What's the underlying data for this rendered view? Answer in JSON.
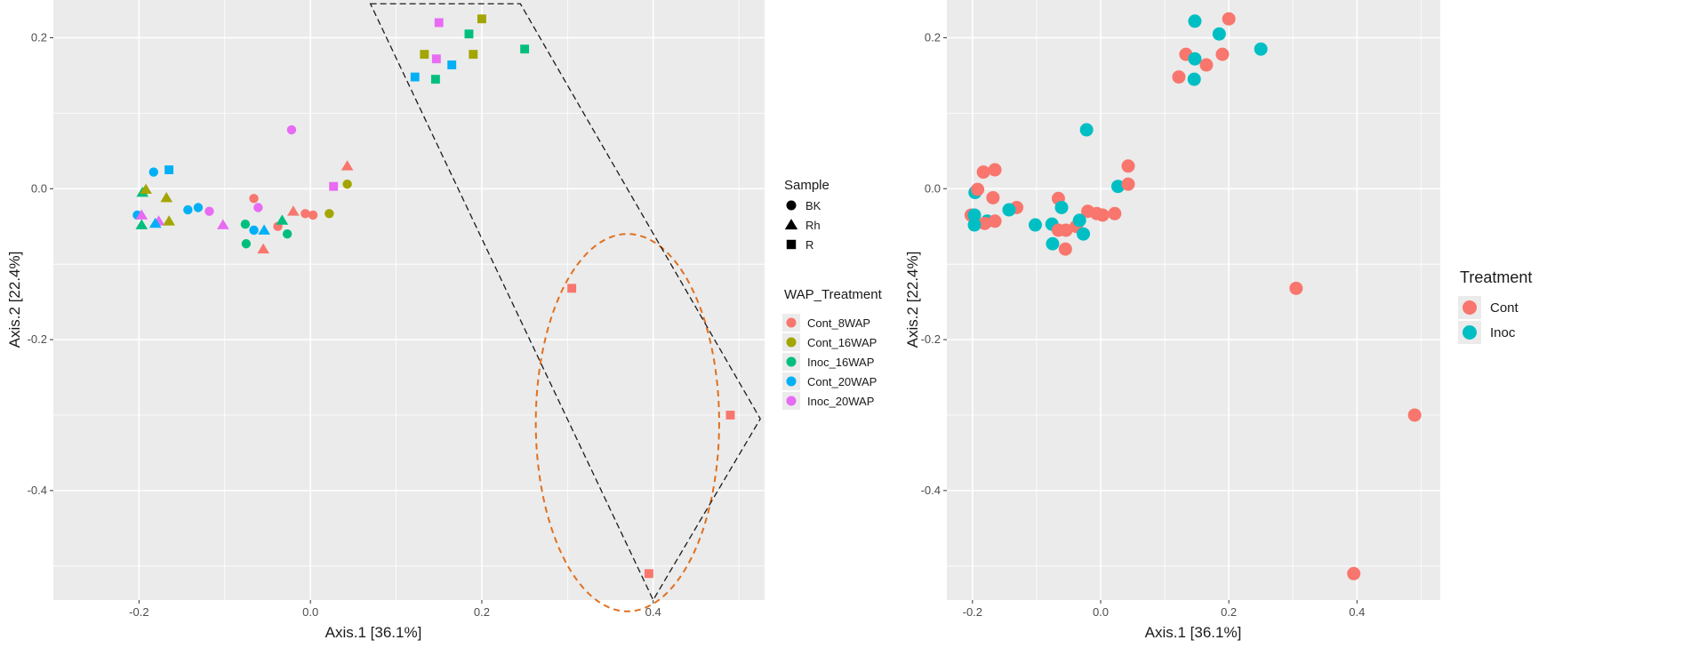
{
  "colors": {
    "Cont_8WAP": "#F8766D",
    "Cont_16WAP": "#A3A500",
    "Inoc_16WAP": "#00BF7D",
    "Cont_20WAP": "#00B0F6",
    "Inoc_20WAP": "#E76BF3",
    "Cont": "#F8766D",
    "Inoc": "#00BFC4",
    "panel_bg": "#EBEBEB",
    "grid": "#FFFFFF",
    "ellipse": "#E07020",
    "polygon": "#1A1A1A"
  },
  "chart_data": [
    {
      "type": "scatter",
      "title": "",
      "xlabel": "Axis.1   [36.1%]",
      "ylabel": "Axis.2   [22.4%]",
      "xlim": [
        -0.3,
        0.53
      ],
      "ylim": [
        -0.545,
        0.25
      ],
      "xticks": [
        -0.2,
        0.0,
        0.2,
        0.4
      ],
      "xtick_labels": [
        "-0.2",
        "0.0",
        "0.2",
        "0.4"
      ],
      "yticks": [
        0.2,
        0.0,
        -0.2,
        -0.4
      ],
      "ytick_labels": [
        "0.2",
        "0.0",
        "-0.2",
        "-0.4"
      ],
      "legend_sample": {
        "title": "Sample",
        "items": [
          {
            "label": "BK",
            "shape": "circle"
          },
          {
            "label": "Rh",
            "shape": "triangle"
          },
          {
            "label": "R",
            "shape": "square"
          }
        ]
      },
      "legend_group": {
        "title": "WAP_Treatment",
        "items": [
          "Cont_8WAP",
          "Cont_16WAP",
          "Inoc_16WAP",
          "Cont_20WAP",
          "Inoc_20WAP"
        ]
      },
      "annotations": [
        {
          "type": "ellipse",
          "cx": 0.37,
          "cy": -0.31,
          "rx": 0.107,
          "ry": 0.25
        },
        {
          "type": "polygon",
          "points": [
            [
              0.07,
              0.245
            ],
            [
              0.245,
              0.245
            ],
            [
              0.525,
              -0.305
            ],
            [
              0.4,
              -0.545
            ]
          ]
        }
      ],
      "points": [
        {
          "x": 0.15,
          "y": 0.22,
          "group": "Inoc_20WAP",
          "shape": "square"
        },
        {
          "x": 0.2,
          "y": 0.225,
          "group": "Cont_16WAP",
          "shape": "square"
        },
        {
          "x": 0.185,
          "y": 0.205,
          "group": "Inoc_16WAP",
          "shape": "square"
        },
        {
          "x": 0.25,
          "y": 0.185,
          "group": "Inoc_16WAP",
          "shape": "square"
        },
        {
          "x": 0.133,
          "y": 0.178,
          "group": "Cont_16WAP",
          "shape": "square"
        },
        {
          "x": 0.19,
          "y": 0.178,
          "group": "Cont_16WAP",
          "shape": "square"
        },
        {
          "x": 0.147,
          "y": 0.172,
          "group": "Inoc_20WAP",
          "shape": "square"
        },
        {
          "x": 0.165,
          "y": 0.164,
          "group": "Cont_20WAP",
          "shape": "square"
        },
        {
          "x": 0.122,
          "y": 0.148,
          "group": "Cont_20WAP",
          "shape": "square"
        },
        {
          "x": 0.146,
          "y": 0.145,
          "group": "Inoc_16WAP",
          "shape": "square"
        },
        {
          "x": -0.022,
          "y": 0.078,
          "group": "Inoc_20WAP",
          "shape": "circle"
        },
        {
          "x": -0.165,
          "y": 0.025,
          "group": "Cont_20WAP",
          "shape": "square"
        },
        {
          "x": -0.183,
          "y": 0.022,
          "group": "Cont_20WAP",
          "shape": "circle"
        },
        {
          "x": 0.043,
          "y": 0.03,
          "group": "Cont_8WAP",
          "shape": "triangle"
        },
        {
          "x": 0.027,
          "y": 0.003,
          "group": "Inoc_20WAP",
          "shape": "square"
        },
        {
          "x": 0.043,
          "y": 0.006,
          "group": "Cont_16WAP",
          "shape": "circle"
        },
        {
          "x": -0.196,
          "y": -0.005,
          "group": "Inoc_16WAP",
          "shape": "triangle"
        },
        {
          "x": -0.192,
          "y": -0.001,
          "group": "Cont_16WAP",
          "shape": "triangle"
        },
        {
          "x": -0.168,
          "y": -0.012,
          "group": "Cont_16WAP",
          "shape": "triangle"
        },
        {
          "x": -0.131,
          "y": -0.025,
          "group": "Cont_20WAP",
          "shape": "circle"
        },
        {
          "x": -0.143,
          "y": -0.028,
          "group": "Cont_20WAP",
          "shape": "circle"
        },
        {
          "x": -0.066,
          "y": -0.013,
          "group": "Cont_8WAP",
          "shape": "circle"
        },
        {
          "x": -0.061,
          "y": -0.025,
          "group": "Inoc_20WAP",
          "shape": "circle"
        },
        {
          "x": -0.02,
          "y": -0.03,
          "group": "Cont_8WAP",
          "shape": "triangle"
        },
        {
          "x": -0.006,
          "y": -0.033,
          "group": "Cont_8WAP",
          "shape": "circle"
        },
        {
          "x": 0.003,
          "y": -0.035,
          "group": "Cont_8WAP",
          "shape": "circle"
        },
        {
          "x": 0.022,
          "y": -0.033,
          "group": "Cont_16WAP",
          "shape": "circle"
        },
        {
          "x": -0.202,
          "y": -0.035,
          "group": "Cont_20WAP",
          "shape": "circle"
        },
        {
          "x": -0.197,
          "y": -0.035,
          "group": "Inoc_20WAP",
          "shape": "triangle"
        },
        {
          "x": -0.118,
          "y": -0.03,
          "group": "Inoc_20WAP",
          "shape": "circle"
        },
        {
          "x": -0.177,
          "y": -0.043,
          "group": "Inoc_20WAP",
          "shape": "triangle"
        },
        {
          "x": -0.165,
          "y": -0.043,
          "group": "Cont_16WAP",
          "shape": "triangle"
        },
        {
          "x": -0.181,
          "y": -0.046,
          "group": "Cont_20WAP",
          "shape": "triangle"
        },
        {
          "x": -0.197,
          "y": -0.048,
          "group": "Inoc_16WAP",
          "shape": "triangle"
        },
        {
          "x": -0.102,
          "y": -0.048,
          "group": "Inoc_20WAP",
          "shape": "triangle"
        },
        {
          "x": -0.076,
          "y": -0.047,
          "group": "Inoc_16WAP",
          "shape": "circle"
        },
        {
          "x": -0.066,
          "y": -0.055,
          "group": "Cont_20WAP",
          "shape": "circle"
        },
        {
          "x": -0.054,
          "y": -0.055,
          "group": "Cont_20WAP",
          "shape": "triangle"
        },
        {
          "x": -0.038,
          "y": -0.05,
          "group": "Cont_8WAP",
          "shape": "circle"
        },
        {
          "x": -0.033,
          "y": -0.042,
          "group": "Inoc_16WAP",
          "shape": "triangle"
        },
        {
          "x": -0.027,
          "y": -0.06,
          "group": "Inoc_16WAP",
          "shape": "circle"
        },
        {
          "x": -0.075,
          "y": -0.073,
          "group": "Inoc_16WAP",
          "shape": "circle"
        },
        {
          "x": -0.055,
          "y": -0.08,
          "group": "Cont_8WAP",
          "shape": "triangle"
        },
        {
          "x": 0.305,
          "y": -0.132,
          "group": "Cont_8WAP",
          "shape": "square"
        },
        {
          "x": 0.49,
          "y": -0.3,
          "group": "Cont_8WAP",
          "shape": "square"
        },
        {
          "x": 0.395,
          "y": -0.51,
          "group": "Cont_8WAP",
          "shape": "square"
        }
      ]
    },
    {
      "type": "scatter",
      "title": "",
      "xlabel": "Axis.1   [36.1%]",
      "ylabel": "Axis.2   [22.4%]",
      "xlim": [
        -0.24,
        0.53
      ],
      "ylim": [
        -0.545,
        0.25
      ],
      "xticks": [
        -0.2,
        0.0,
        0.2,
        0.4
      ],
      "xtick_labels": [
        "-0.2",
        "0.0",
        "0.2",
        "0.4"
      ],
      "yticks": [
        0.2,
        0.0,
        -0.2,
        -0.4
      ],
      "ytick_labels": [
        "0.2",
        "0.0",
        "-0.2",
        "-0.4"
      ],
      "legend": {
        "title": "Treatment",
        "items": [
          "Cont",
          "Inoc"
        ]
      },
      "points": [
        {
          "x": 0.2,
          "y": 0.225,
          "group": "Cont"
        },
        {
          "x": 0.147,
          "y": 0.222,
          "group": "Inoc"
        },
        {
          "x": 0.185,
          "y": 0.205,
          "group": "Inoc"
        },
        {
          "x": 0.25,
          "y": 0.185,
          "group": "Inoc"
        },
        {
          "x": 0.133,
          "y": 0.178,
          "group": "Cont"
        },
        {
          "x": 0.19,
          "y": 0.178,
          "group": "Cont"
        },
        {
          "x": 0.147,
          "y": 0.172,
          "group": "Inoc"
        },
        {
          "x": 0.165,
          "y": 0.164,
          "group": "Cont"
        },
        {
          "x": 0.122,
          "y": 0.148,
          "group": "Cont"
        },
        {
          "x": 0.146,
          "y": 0.145,
          "group": "Inoc"
        },
        {
          "x": -0.022,
          "y": 0.078,
          "group": "Inoc"
        },
        {
          "x": -0.165,
          "y": 0.025,
          "group": "Cont"
        },
        {
          "x": -0.183,
          "y": 0.022,
          "group": "Cont"
        },
        {
          "x": 0.043,
          "y": 0.03,
          "group": "Cont"
        },
        {
          "x": 0.027,
          "y": 0.003,
          "group": "Inoc"
        },
        {
          "x": 0.043,
          "y": 0.006,
          "group": "Cont"
        },
        {
          "x": -0.196,
          "y": -0.005,
          "group": "Inoc"
        },
        {
          "x": -0.192,
          "y": -0.001,
          "group": "Cont"
        },
        {
          "x": -0.168,
          "y": -0.012,
          "group": "Cont"
        },
        {
          "x": -0.131,
          "y": -0.025,
          "group": "Cont"
        },
        {
          "x": -0.143,
          "y": -0.028,
          "group": "Inoc"
        },
        {
          "x": -0.066,
          "y": -0.013,
          "group": "Cont"
        },
        {
          "x": -0.061,
          "y": -0.025,
          "group": "Inoc"
        },
        {
          "x": -0.02,
          "y": -0.03,
          "group": "Cont"
        },
        {
          "x": -0.006,
          "y": -0.033,
          "group": "Cont"
        },
        {
          "x": 0.003,
          "y": -0.035,
          "group": "Cont"
        },
        {
          "x": 0.022,
          "y": -0.033,
          "group": "Cont"
        },
        {
          "x": -0.202,
          "y": -0.035,
          "group": "Cont"
        },
        {
          "x": -0.197,
          "y": -0.035,
          "group": "Inoc"
        },
        {
          "x": -0.177,
          "y": -0.043,
          "group": "Inoc"
        },
        {
          "x": -0.165,
          "y": -0.043,
          "group": "Cont"
        },
        {
          "x": -0.181,
          "y": -0.046,
          "group": "Cont"
        },
        {
          "x": -0.197,
          "y": -0.048,
          "group": "Inoc"
        },
        {
          "x": -0.102,
          "y": -0.048,
          "group": "Inoc"
        },
        {
          "x": -0.076,
          "y": -0.047,
          "group": "Inoc"
        },
        {
          "x": -0.066,
          "y": -0.055,
          "group": "Cont"
        },
        {
          "x": -0.054,
          "y": -0.055,
          "group": "Cont"
        },
        {
          "x": -0.038,
          "y": -0.05,
          "group": "Cont"
        },
        {
          "x": -0.033,
          "y": -0.042,
          "group": "Inoc"
        },
        {
          "x": -0.027,
          "y": -0.06,
          "group": "Inoc"
        },
        {
          "x": -0.075,
          "y": -0.073,
          "group": "Inoc"
        },
        {
          "x": -0.055,
          "y": -0.08,
          "group": "Cont"
        },
        {
          "x": 0.305,
          "y": -0.132,
          "group": "Cont"
        },
        {
          "x": 0.49,
          "y": -0.3,
          "group": "Cont"
        },
        {
          "x": 0.395,
          "y": -0.51,
          "group": "Cont"
        }
      ]
    }
  ]
}
